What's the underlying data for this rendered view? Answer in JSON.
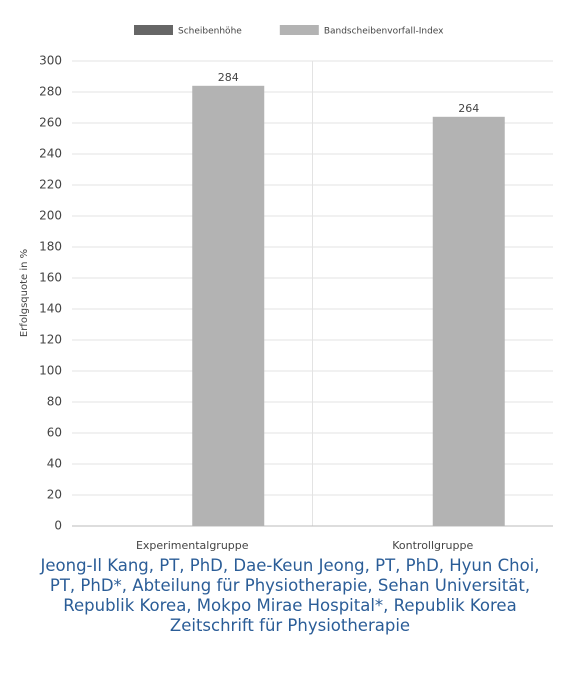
{
  "chart_data": {
    "type": "bar",
    "categories": [
      "Experimentalgruppe",
      "Kontrollgruppe"
    ],
    "series": [
      {
        "name": "Scheibenhöhe",
        "color": "#666666",
        "values": [
          null,
          null
        ]
      },
      {
        "name": "Bandscheibenvorfall-Index",
        "color": "#b3b3b3",
        "values": [
          284,
          264
        ]
      }
    ],
    "ylabel": "Erfolgsquote in %",
    "ylim": [
      0,
      300
    ],
    "yticks": [
      0,
      20,
      40,
      60,
      80,
      100,
      120,
      140,
      160,
      180,
      200,
      220,
      240,
      260,
      280,
      300
    ],
    "grid": true,
    "legend": "top"
  },
  "caption": "Jeong-Il Kang, PT, PhD, Dae-Keun Jeong, PT, PhD, Hyun Choi, PT, PhD*, Abteilung für Physiotherapie, Sehan Universität, Republik Korea, Mokpo Mirae Hospital*, Republik Korea",
  "source": "Zeitschrift für Physiotherapie"
}
